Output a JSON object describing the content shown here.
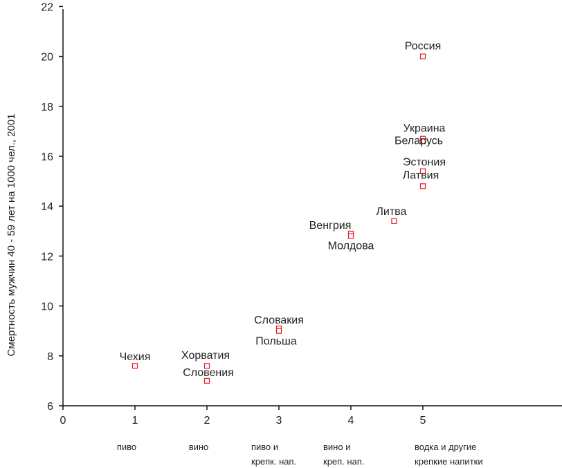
{
  "chart_data": {
    "type": "scatter",
    "title": "",
    "xlabel": "",
    "ylabel": "Смертность мужчин 40 - 59 лет на 1000 чел., 2001",
    "xlim": [
      0,
      6
    ],
    "ylim": [
      6,
      22
    ],
    "x_ticks": [
      0,
      1,
      2,
      3,
      4,
      5
    ],
    "y_ticks": [
      6,
      8,
      10,
      12,
      14,
      16,
      18,
      20,
      22
    ],
    "x_categories": [
      {
        "x": 1,
        "lines": [
          "пиво"
        ]
      },
      {
        "x": 2,
        "lines": [
          "вино"
        ]
      },
      {
        "x": 3,
        "lines": [
          "пиво и",
          "крепк. нап."
        ]
      },
      {
        "x": 4,
        "lines": [
          "вино и",
          "креп. нап."
        ]
      },
      {
        "x": 5,
        "lines": [
          "водка и другие",
          "крепкие напитки"
        ]
      }
    ],
    "grid": false,
    "marker_color": "#e8202a",
    "points": [
      {
        "label": "Россия",
        "x": 5,
        "y": 20.0
      },
      {
        "label": "Украина",
        "x": 5,
        "y": 16.7
      },
      {
        "label": "Беларусь",
        "x": 5,
        "y": 16.6
      },
      {
        "label": "Эстония",
        "x": 5,
        "y": 15.4
      },
      {
        "label": "Латвия",
        "x": 5,
        "y": 14.8
      },
      {
        "label": "Литва",
        "x": 4.6,
        "y": 13.4
      },
      {
        "label": "Венгрия",
        "x": 4,
        "y": 12.9
      },
      {
        "label": "Молдова",
        "x": 4,
        "y": 12.8
      },
      {
        "label": "Словакия",
        "x": 3,
        "y": 9.1
      },
      {
        "label": "Польша",
        "x": 3,
        "y": 9.0
      },
      {
        "label": "Чехия",
        "x": 1,
        "y": 7.6
      },
      {
        "label": "Хорватия",
        "x": 2,
        "y": 7.6
      },
      {
        "label": "Словения",
        "x": 2,
        "y": 7.0
      }
    ]
  }
}
